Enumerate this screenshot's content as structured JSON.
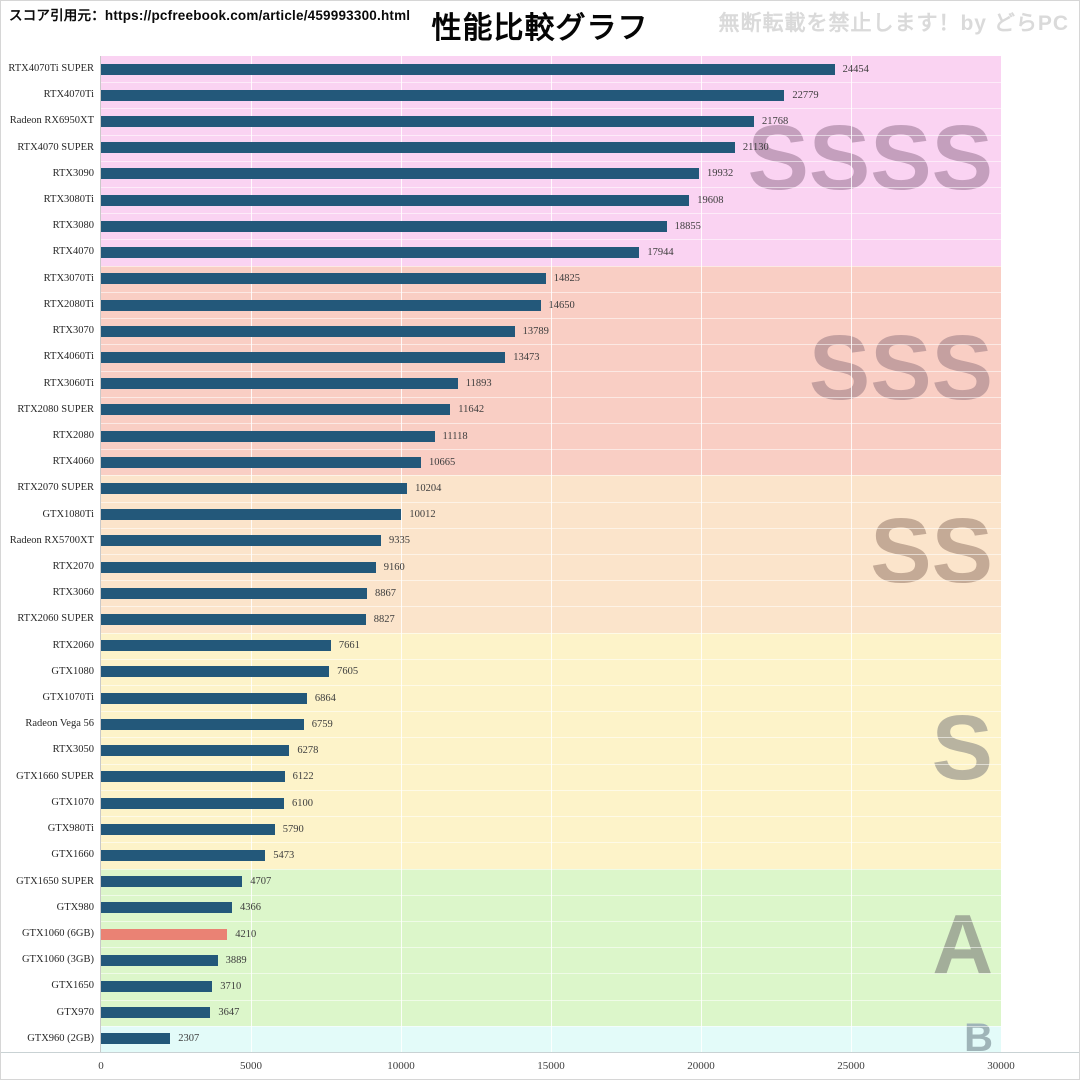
{
  "header": {
    "source_label": "スコア引用元：https://pcfreebook.com/article/459993300.html",
    "title": "性能比較グラフ",
    "watermark": "無断転載を禁止します！by どらPC"
  },
  "colors": {
    "bar": "#23587a",
    "bar_highlight": "#ea8274",
    "value_text": "#3d3d3d",
    "category_text": "#262626",
    "axis_line": "#c9c9c9"
  },
  "chart_data": {
    "type": "bar",
    "orientation": "horizontal",
    "title": "性能比較グラフ",
    "xlabel": "",
    "ylabel": "",
    "xlim": [
      0,
      30000
    ],
    "x_ticks": [
      0,
      5000,
      10000,
      15000,
      20000,
      25000,
      30000
    ],
    "grid": true,
    "tiers": [
      {
        "label": "SSSS",
        "rows": 8,
        "band_color": "#fad3f2",
        "watermark_color": "#c49fbd",
        "watermark_size": 92
      },
      {
        "label": "SSS",
        "rows": 8,
        "band_color": "#f9cec4",
        "watermark_color": "#c5a0a0",
        "watermark_size": 92
      },
      {
        "label": "SS",
        "rows": 6,
        "band_color": "#fbe4cb",
        "watermark_color": "#c4aa96",
        "watermark_size": 92
      },
      {
        "label": "S",
        "rows": 9,
        "band_color": "#fdf3c9",
        "watermark_color": "#b8b3a0",
        "watermark_size": 92
      },
      {
        "label": "A",
        "rows": 6,
        "band_color": "#dcf6ca",
        "watermark_color": "#a3ae9a",
        "watermark_size": 84
      },
      {
        "label": "B",
        "rows": 1,
        "band_color": "#e3fbf9",
        "watermark_color": "#9fb4b8",
        "watermark_size": 40
      }
    ],
    "items": [
      {
        "name": "RTX4070Ti SUPER",
        "value": 24454,
        "tier": "SSSS",
        "highlight": false
      },
      {
        "name": "RTX4070Ti",
        "value": 22779,
        "tier": "SSSS",
        "highlight": false
      },
      {
        "name": "Radeon RX6950XT",
        "value": 21768,
        "tier": "SSSS",
        "highlight": false
      },
      {
        "name": "RTX4070 SUPER",
        "value": 21130,
        "tier": "SSSS",
        "highlight": false
      },
      {
        "name": "RTX3090",
        "value": 19932,
        "tier": "SSSS",
        "highlight": false
      },
      {
        "name": "RTX3080Ti",
        "value": 19608,
        "tier": "SSSS",
        "highlight": false
      },
      {
        "name": "RTX3080",
        "value": 18855,
        "tier": "SSSS",
        "highlight": false
      },
      {
        "name": "RTX4070",
        "value": 17944,
        "tier": "SSSS",
        "highlight": false
      },
      {
        "name": "RTX3070Ti",
        "value": 14825,
        "tier": "SSS",
        "highlight": false
      },
      {
        "name": "RTX2080Ti",
        "value": 14650,
        "tier": "SSS",
        "highlight": false
      },
      {
        "name": "RTX3070",
        "value": 13789,
        "tier": "SSS",
        "highlight": false
      },
      {
        "name": "RTX4060Ti",
        "value": 13473,
        "tier": "SSS",
        "highlight": false
      },
      {
        "name": "RTX3060Ti",
        "value": 11893,
        "tier": "SSS",
        "highlight": false
      },
      {
        "name": "RTX2080 SUPER",
        "value": 11642,
        "tier": "SSS",
        "highlight": false
      },
      {
        "name": "RTX2080",
        "value": 11118,
        "tier": "SSS",
        "highlight": false
      },
      {
        "name": "RTX4060",
        "value": 10665,
        "tier": "SSS",
        "highlight": false
      },
      {
        "name": "RTX2070 SUPER",
        "value": 10204,
        "tier": "SS",
        "highlight": false
      },
      {
        "name": "GTX1080Ti",
        "value": 10012,
        "tier": "SS",
        "highlight": false
      },
      {
        "name": "Radeon RX5700XT",
        "value": 9335,
        "tier": "SS",
        "highlight": false
      },
      {
        "name": "RTX2070",
        "value": 9160,
        "tier": "SS",
        "highlight": false
      },
      {
        "name": "RTX3060",
        "value": 8867,
        "tier": "SS",
        "highlight": false
      },
      {
        "name": "RTX2060 SUPER",
        "value": 8827,
        "tier": "SS",
        "highlight": false
      },
      {
        "name": "RTX2060",
        "value": 7661,
        "tier": "S",
        "highlight": false
      },
      {
        "name": "GTX1080",
        "value": 7605,
        "tier": "S",
        "highlight": false
      },
      {
        "name": "GTX1070Ti",
        "value": 6864,
        "tier": "S",
        "highlight": false
      },
      {
        "name": "Radeon Vega 56",
        "value": 6759,
        "tier": "S",
        "highlight": false
      },
      {
        "name": "RTX3050",
        "value": 6278,
        "tier": "S",
        "highlight": false
      },
      {
        "name": "GTX1660 SUPER",
        "value": 6122,
        "tier": "S",
        "highlight": false
      },
      {
        "name": "GTX1070",
        "value": 6100,
        "tier": "S",
        "highlight": false
      },
      {
        "name": "GTX980Ti",
        "value": 5790,
        "tier": "S",
        "highlight": false
      },
      {
        "name": "GTX1660",
        "value": 5473,
        "tier": "S",
        "highlight": false
      },
      {
        "name": "GTX1650 SUPER",
        "value": 4707,
        "tier": "A",
        "highlight": false
      },
      {
        "name": "GTX980",
        "value": 4366,
        "tier": "A",
        "highlight": false
      },
      {
        "name": "GTX1060 (6GB)",
        "value": 4210,
        "tier": "A",
        "highlight": true
      },
      {
        "name": "GTX1060 (3GB)",
        "value": 3889,
        "tier": "A",
        "highlight": false
      },
      {
        "name": "GTX1650",
        "value": 3710,
        "tier": "A",
        "highlight": false
      },
      {
        "name": "GTX970",
        "value": 3647,
        "tier": "A",
        "highlight": false
      },
      {
        "name": "GTX960 (2GB)",
        "value": 2307,
        "tier": "B",
        "highlight": false
      }
    ]
  }
}
